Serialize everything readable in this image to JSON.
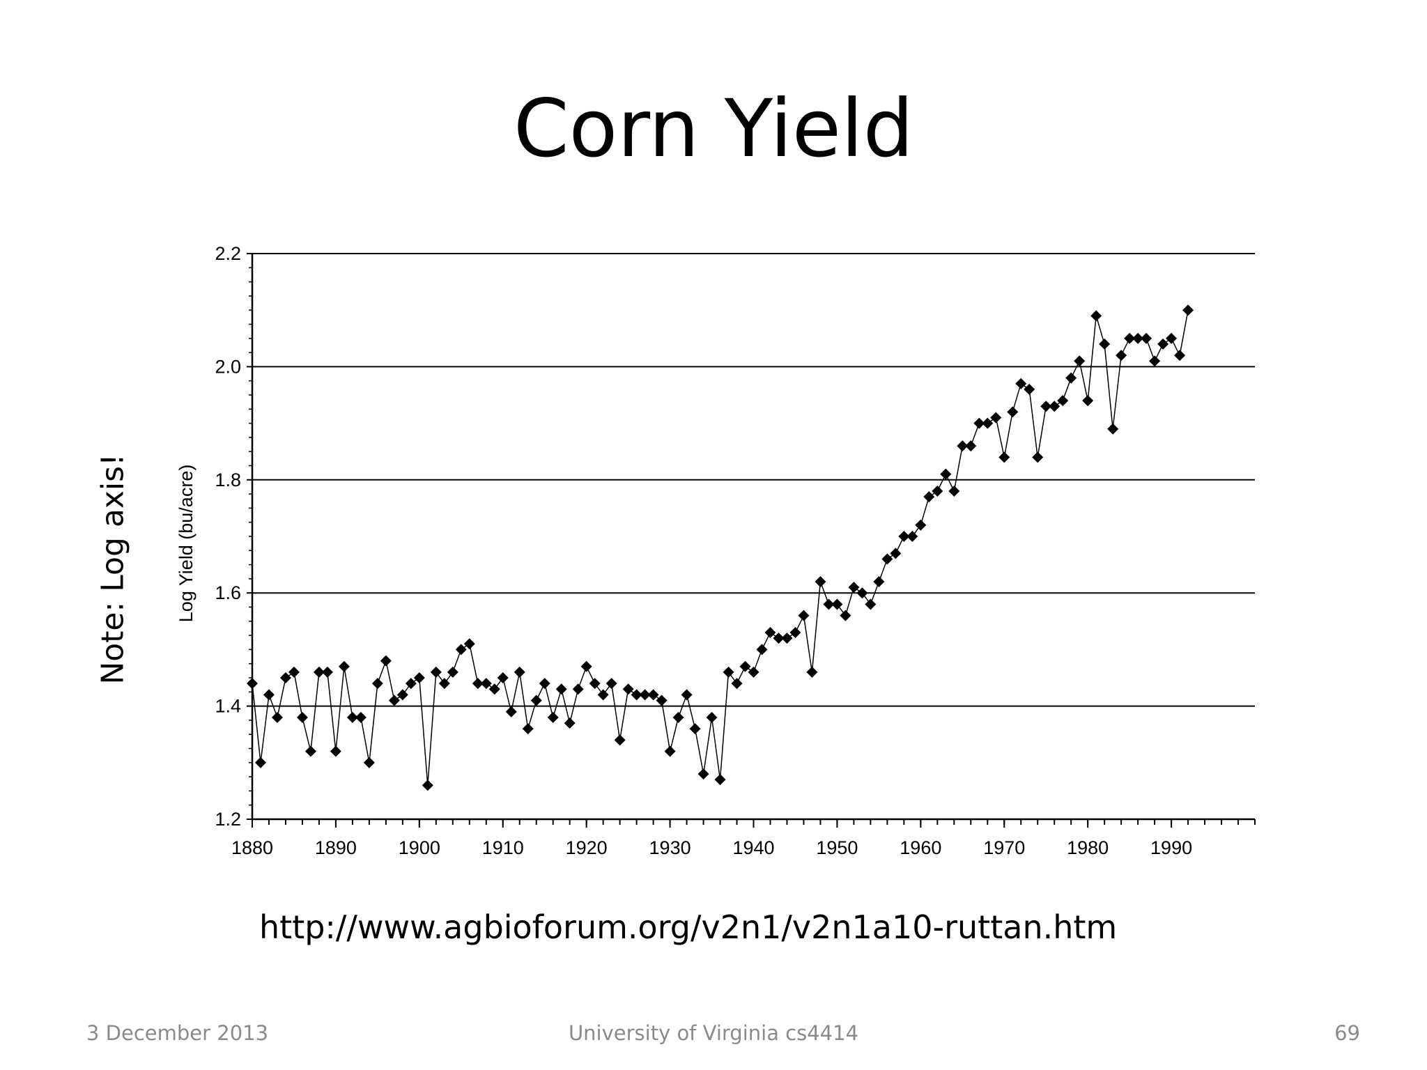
{
  "slide": {
    "title": "Corn Yield",
    "note": "Note: Log axis!",
    "source_url": "http://www.agbioforum.org/v2n1/v2n1a10-ruttan.htm",
    "footer": {
      "date": "3 December 2013",
      "course": "University of Virginia cs4414",
      "page": "69"
    }
  },
  "chart_data": {
    "type": "line",
    "title": "",
    "xlabel": "",
    "ylabel": "Log Yield (bu/acre)",
    "xlim": [
      1880,
      2000
    ],
    "ylim": [
      1.2,
      2.2
    ],
    "grid": "horizontal",
    "marker": "diamond",
    "line_color": "#000000",
    "x_ticks": [
      "1880",
      "1890",
      "1900",
      "1910",
      "1920",
      "1930",
      "1940",
      "1950",
      "1960",
      "1970",
      "1980",
      "1990"
    ],
    "y_ticks": [
      "1.2",
      "1.4",
      "1.6",
      "1.8",
      "2.0",
      "2.2"
    ],
    "series": [
      {
        "x": [
          1880,
          1881,
          1882,
          1883,
          1884,
          1885,
          1886,
          1887,
          1888,
          1889,
          1890,
          1891,
          1892,
          1893,
          1894,
          1895,
          1896,
          1897,
          1898,
          1899,
          1900,
          1901,
          1902,
          1903,
          1904,
          1905,
          1906,
          1907,
          1908,
          1909,
          1910,
          1911,
          1912,
          1913,
          1914,
          1915,
          1916,
          1917,
          1918,
          1919,
          1920,
          1921,
          1922,
          1923,
          1924,
          1925,
          1926,
          1927,
          1928,
          1929,
          1930,
          1931,
          1932,
          1933,
          1934,
          1935,
          1936,
          1937,
          1938,
          1939,
          1940,
          1941,
          1942,
          1943,
          1944,
          1945,
          1946,
          1947,
          1948,
          1949,
          1950,
          1951,
          1952,
          1953,
          1954,
          1955,
          1956,
          1957,
          1958,
          1959,
          1960,
          1961,
          1962,
          1963,
          1964,
          1965,
          1966,
          1967,
          1968,
          1969,
          1970,
          1971,
          1972,
          1973,
          1974,
          1975,
          1976,
          1977,
          1978,
          1979,
          1980,
          1981,
          1982,
          1983,
          1984,
          1985,
          1986,
          1987,
          1988,
          1989,
          1990,
          1991,
          1992
        ],
        "values": [
          1.44,
          1.3,
          1.42,
          1.38,
          1.45,
          1.46,
          1.38,
          1.32,
          1.46,
          1.46,
          1.32,
          1.47,
          1.38,
          1.38,
          1.3,
          1.44,
          1.48,
          1.41,
          1.42,
          1.44,
          1.45,
          1.26,
          1.46,
          1.44,
          1.46,
          1.5,
          1.51,
          1.44,
          1.44,
          1.43,
          1.45,
          1.39,
          1.46,
          1.36,
          1.41,
          1.44,
          1.38,
          1.43,
          1.37,
          1.43,
          1.47,
          1.44,
          1.42,
          1.44,
          1.34,
          1.43,
          1.42,
          1.42,
          1.42,
          1.41,
          1.32,
          1.38,
          1.42,
          1.36,
          1.28,
          1.38,
          1.27,
          1.46,
          1.44,
          1.47,
          1.46,
          1.5,
          1.53,
          1.52,
          1.52,
          1.53,
          1.56,
          1.46,
          1.62,
          1.58,
          1.58,
          1.56,
          1.61,
          1.6,
          1.58,
          1.62,
          1.66,
          1.67,
          1.7,
          1.7,
          1.72,
          1.77,
          1.78,
          1.81,
          1.78,
          1.86,
          1.86,
          1.9,
          1.9,
          1.91,
          1.84,
          1.92,
          1.97,
          1.96,
          1.84,
          1.93,
          1.93,
          1.94,
          1.98,
          2.01,
          1.94,
          2.09,
          2.04,
          1.89,
          2.02,
          2.05,
          2.05,
          2.05,
          2.01,
          2.04,
          2.05,
          2.02,
          2.1
        ]
      }
    ]
  }
}
